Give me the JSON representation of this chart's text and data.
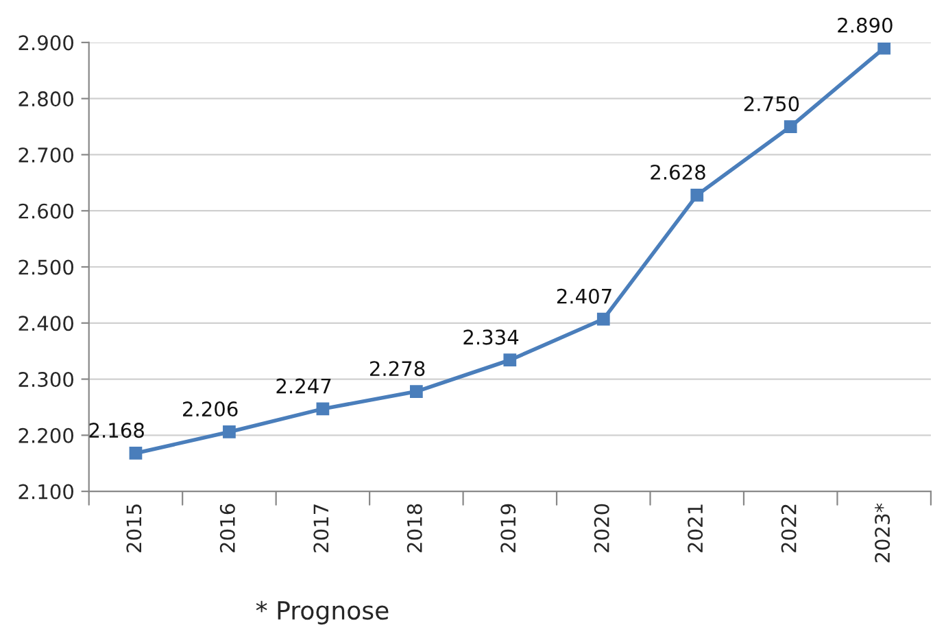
{
  "chart_data": {
    "type": "line",
    "categories": [
      "2015",
      "2016",
      "2017",
      "2018",
      "2019",
      "2020",
      "2021",
      "2022",
      "2023*"
    ],
    "series": [
      {
        "color": "#4a7ebb",
        "values": [
          2168,
          2206,
          2247,
          2278,
          2334,
          2407,
          2628,
          2750,
          2890
        ],
        "value_labels": [
          "2.168",
          "2.206",
          "2.247",
          "2.278",
          "2.334",
          "2.407",
          "2.628",
          "2.750",
          "2.890"
        ]
      }
    ],
    "ylim": [
      2100,
      2900
    ],
    "yticks": [
      {
        "value": 2100,
        "label": "2.100"
      },
      {
        "value": 2200,
        "label": "2.200"
      },
      {
        "value": 2300,
        "label": "2.300"
      },
      {
        "value": 2400,
        "label": "2.400"
      },
      {
        "value": 2500,
        "label": "2.500"
      },
      {
        "value": 2600,
        "label": "2.600"
      },
      {
        "value": 2700,
        "label": "2.700"
      },
      {
        "value": 2800,
        "label": "2.800"
      },
      {
        "value": 2900,
        "label": "2.900"
      }
    ],
    "grid": "y",
    "marker": "square",
    "line_style": "solid",
    "annotations": [
      "* Prognose"
    ]
  }
}
